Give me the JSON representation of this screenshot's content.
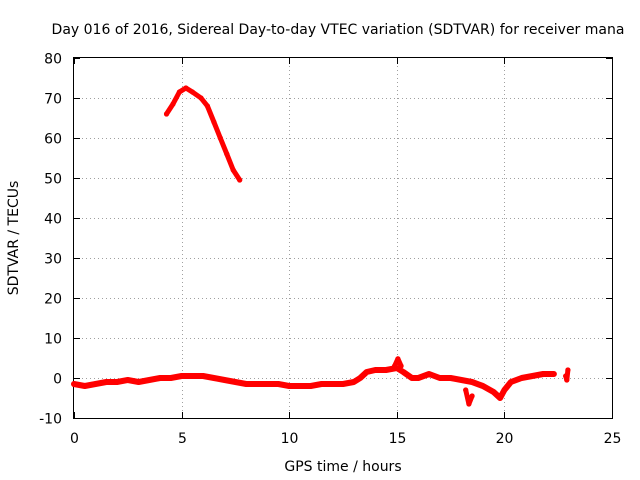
{
  "chart_data": {
    "type": "line",
    "title": "Day 016 of 2016, Sidereal Day-to-day VTEC variation (SDTVAR) for receiver mana",
    "xlabel": "GPS time / hours",
    "ylabel": "SDTVAR / TECUs",
    "xlim": [
      0,
      25
    ],
    "ylim": [
      -10,
      80
    ],
    "xticks": [
      0,
      5,
      10,
      15,
      20,
      25
    ],
    "yticks": [
      -10,
      0,
      10,
      20,
      30,
      40,
      50,
      60,
      70,
      80
    ],
    "xtick_labels": [
      "0",
      "5",
      "10",
      "15",
      "20",
      "25"
    ],
    "ytick_labels": [
      "-10",
      "0",
      "10",
      "20",
      "30",
      "40",
      "50",
      "60",
      "70",
      "80"
    ],
    "grid": true,
    "colors": {
      "series": "#ff0000",
      "frame": "#000000",
      "grid": "#a0a0a0"
    },
    "series": [
      {
        "name": "sdtvar-high-arc",
        "points": [
          [
            4.3,
            66
          ],
          [
            4.6,
            68.5
          ],
          [
            4.9,
            71.5
          ],
          [
            5.2,
            72.5
          ],
          [
            5.5,
            71.5
          ],
          [
            5.9,
            70
          ],
          [
            6.2,
            68
          ],
          [
            6.5,
            64
          ],
          [
            6.8,
            60
          ],
          [
            7.1,
            56
          ],
          [
            7.4,
            52
          ],
          [
            7.7,
            49.5
          ]
        ]
      },
      {
        "name": "sdtvar-baseline",
        "points": [
          [
            0,
            -1.5
          ],
          [
            0.5,
            -2
          ],
          [
            1,
            -1.5
          ],
          [
            1.5,
            -1
          ],
          [
            2,
            -1
          ],
          [
            2.5,
            -0.5
          ],
          [
            3,
            -1
          ],
          [
            3.5,
            -0.5
          ],
          [
            4,
            0
          ],
          [
            4.5,
            0
          ],
          [
            5,
            0.5
          ],
          [
            5.5,
            0.5
          ],
          [
            6,
            0.5
          ],
          [
            6.5,
            0
          ],
          [
            7,
            -0.5
          ],
          [
            7.5,
            -1
          ],
          [
            8,
            -1.5
          ],
          [
            8.5,
            -1.5
          ],
          [
            9,
            -1.5
          ],
          [
            9.5,
            -1.5
          ],
          [
            10,
            -2
          ],
          [
            10.5,
            -2
          ],
          [
            11,
            -2
          ],
          [
            11.5,
            -1.5
          ],
          [
            12,
            -1.5
          ],
          [
            12.5,
            -1.5
          ],
          [
            13,
            -1
          ],
          [
            13.3,
            0
          ],
          [
            13.6,
            1.5
          ],
          [
            14,
            2
          ],
          [
            14.5,
            2
          ],
          [
            15,
            2.5
          ],
          [
            15.3,
            1.5
          ],
          [
            15.7,
            0
          ],
          [
            16,
            0
          ],
          [
            16.5,
            1
          ],
          [
            17,
            0
          ],
          [
            17.5,
            0
          ],
          [
            18,
            -0.5
          ],
          [
            18.5,
            -1
          ],
          [
            19,
            -2
          ],
          [
            19.5,
            -3.5
          ],
          [
            19.8,
            -5
          ],
          [
            20,
            -3
          ],
          [
            20.3,
            -1
          ],
          [
            20.8,
            0
          ],
          [
            21.3,
            0.5
          ],
          [
            21.8,
            1
          ],
          [
            22.3,
            1
          ]
        ]
      },
      {
        "name": "sdtvar-spike-18",
        "points": [
          [
            18.2,
            -3
          ],
          [
            18.35,
            -6.5
          ],
          [
            18.5,
            -4.5
          ]
        ]
      },
      {
        "name": "sdtvar-spike-15",
        "points": [
          [
            14.9,
            3
          ],
          [
            15.05,
            4.8
          ],
          [
            15.2,
            3
          ]
        ]
      },
      {
        "name": "sdtvar-tail-23",
        "points": [
          [
            22.85,
            0.5
          ],
          [
            22.9,
            -0.5
          ],
          [
            22.95,
            2
          ]
        ]
      }
    ]
  }
}
